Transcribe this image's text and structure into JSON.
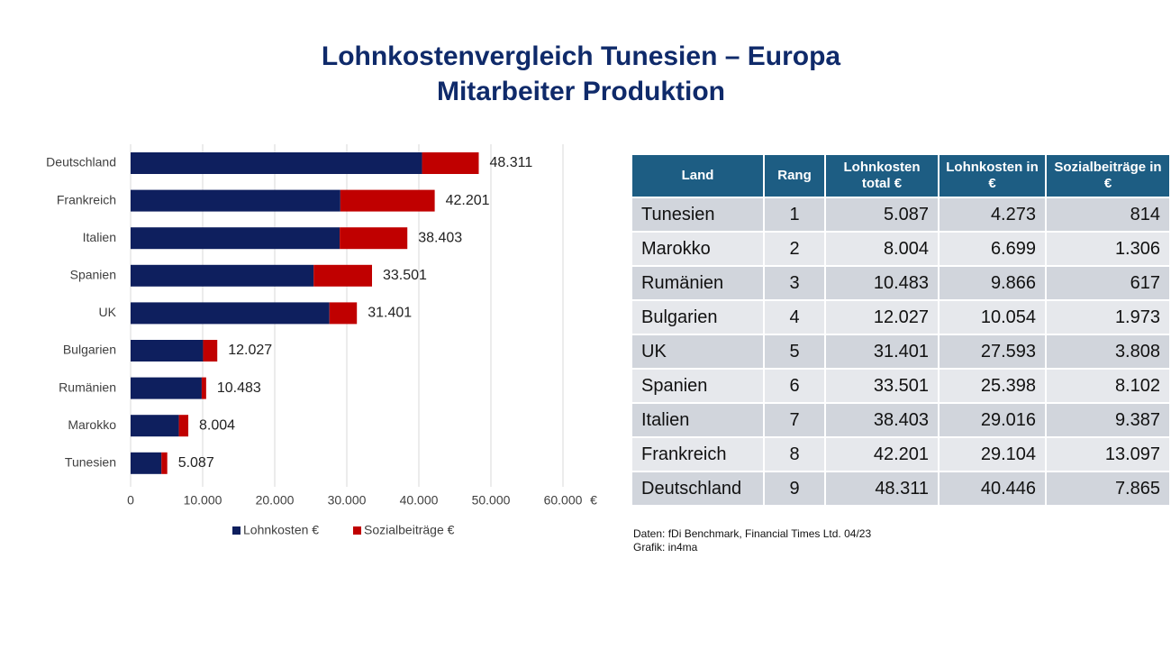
{
  "title": [
    "Lohnkostenvergleich Tunesien – Europa",
    "Mitarbeiter Produktion"
  ],
  "chart_data": {
    "type": "stacked-barh",
    "categories": [
      "Deutschland",
      "Frankreich",
      "Italien",
      "Spanien",
      "UK",
      "Bulgarien",
      "Rumänien",
      "Marokko",
      "Tunesien"
    ],
    "series": [
      {
        "name": "Lohnkosten €",
        "color": "#0e1f5e",
        "values": [
          40446,
          29104,
          29016,
          25398,
          27593,
          10054,
          9866,
          6699,
          4273
        ]
      },
      {
        "name": "Sozialbeiträge €",
        "color": "#c00000",
        "values": [
          7865,
          13097,
          9387,
          8102,
          3808,
          1973,
          617,
          1306,
          814
        ]
      }
    ],
    "totals": [
      48311,
      42201,
      38403,
      33501,
      31401,
      12027,
      10483,
      8004,
      5087
    ],
    "value_labels": [
      "48.311",
      "42.201",
      "38.403",
      "33.501",
      "31.401",
      "12.027",
      "10.483",
      "8.004",
      "5.087"
    ],
    "xlim": [
      0,
      60000
    ],
    "xticks": [
      0,
      {
        "value": 10000,
        "label": "10.000"
      },
      {
        "value": 20000,
        "label": "20.000"
      },
      {
        "value": 30000,
        "label": "30.000"
      },
      {
        "value": 40000,
        "label": "40.000"
      },
      {
        "value": 50000,
        "label": "50.000"
      },
      {
        "value": 60000,
        "label": "60.000"
      }
    ],
    "x_label": "€",
    "grid": true,
    "legend": "bottom"
  },
  "table": {
    "header": [
      "Land",
      "Rang",
      "Lohnkosten total €",
      "Lohnkosten in €",
      "Sozialbeiträge in €"
    ],
    "rows": [
      [
        "Tunesien",
        1,
        "5.087",
        "4.273",
        "814"
      ],
      [
        "Marokko",
        2,
        "8.004",
        "6.699",
        "1.306"
      ],
      [
        "Rumänien",
        3,
        "10.483",
        "9.866",
        "617"
      ],
      [
        "Bulgarien",
        4,
        "12.027",
        "10.054",
        "1.973"
      ],
      [
        "UK",
        5,
        "31.401",
        "27.593",
        "3.808"
      ],
      [
        "Spanien",
        6,
        "33.501",
        "25.398",
        "8.102"
      ],
      [
        "Italien",
        7,
        "38.403",
        "29.016",
        "9.387"
      ],
      [
        "Frankreich",
        8,
        "42.201",
        "29.104",
        "13.097"
      ],
      [
        "Deutschland",
        9,
        "48.311",
        "40.446",
        "7.865"
      ]
    ]
  },
  "source": [
    "Daten: fDi Benchmark, Financial Times Ltd. 04/23",
    "Grafik: in4ma"
  ]
}
